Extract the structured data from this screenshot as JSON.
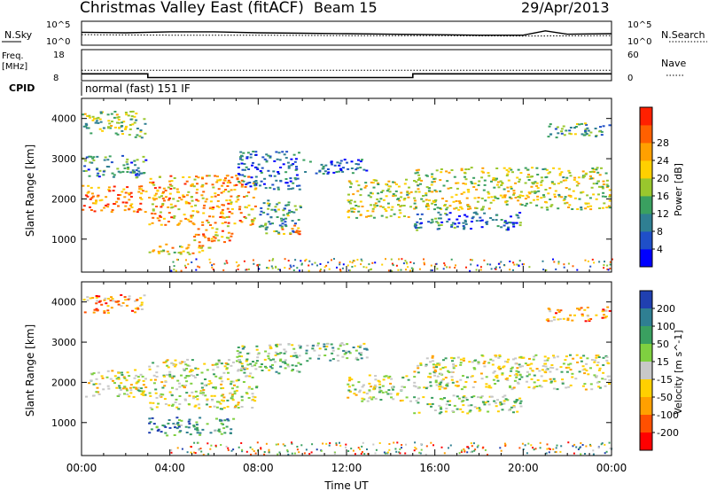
{
  "header": {
    "site": "Christmas Valley East (fitACF)",
    "beam": "Beam 15",
    "date": "29/Apr/2013"
  },
  "summary": {
    "nsky_label": "N.Sky",
    "nsearch_label": "N.Search",
    "nsky_ticks": [
      "10^5",
      "10^0"
    ],
    "nsearch_ticks": [
      "10^5",
      "10^0"
    ],
    "freq_label": "Freq.",
    "freq_unit": "[MHz]",
    "freq_ticks": [
      "18",
      "8"
    ],
    "nave_label": "Nave",
    "nave_ticks": [
      "60",
      "0"
    ],
    "cpid_label": "CPID",
    "cpid_value": "normal (fast) 151 IF"
  },
  "chart_data": [
    {
      "type": "line",
      "name": "noise",
      "series": [
        {
          "name": "N.Sky",
          "x": [
            0,
            2,
            4,
            6,
            8,
            10,
            12,
            14,
            16,
            18,
            20,
            21,
            22,
            24
          ],
          "values": [
            2.7,
            2.6,
            2.8,
            2.8,
            2.6,
            2.5,
            2.4,
            2.3,
            2.2,
            2.1,
            2.1,
            3.0,
            2.3,
            2.4
          ]
        },
        {
          "name": "N.Search",
          "x": [
            0,
            4,
            8,
            12,
            16,
            20,
            24
          ],
          "values": [
            2.2,
            2.1,
            2.1,
            2.0,
            2.0,
            1.9,
            2.0
          ]
        }
      ]
    },
    {
      "type": "line",
      "name": "frequency",
      "series": [
        {
          "name": "Freq.",
          "x": [
            0,
            3,
            3,
            15,
            15,
            24
          ],
          "values": [
            10.2,
            10.2,
            9.0,
            9.0,
            10.2,
            10.2
          ]
        },
        {
          "name": "Nave",
          "x": [
            0,
            24
          ],
          "values": [
            20,
            20
          ]
        }
      ]
    },
    {
      "type": "heatmap",
      "name": "power",
      "xlabel": "",
      "ylabel": "Slant Range [km]",
      "xlim": [
        0,
        24
      ],
      "ylim": [
        180,
        4500
      ],
      "yticks": [
        "1000",
        "2000",
        "3000",
        "4000"
      ],
      "colorbar": {
        "label": "Power [dB]",
        "ticks": [
          "4",
          "8",
          "12",
          "16",
          "20",
          "24",
          "28"
        ],
        "colors": [
          "#0000ff",
          "#1f4fc8",
          "#2f7f92",
          "#3aa060",
          "#99c72d",
          "#ffd000",
          "#ffa000",
          "#ff6000",
          "#ff2000"
        ]
      },
      "bands": [
        {
          "t": [
            0,
            3
          ],
          "r": [
            1650,
            2350
          ],
          "level": 0.8
        },
        {
          "t": [
            0,
            3
          ],
          "r": [
            2500,
            3100
          ],
          "level": 0.3
        },
        {
          "t": [
            0,
            3
          ],
          "r": [
            3500,
            4200
          ],
          "level": 0.45
        },
        {
          "t": [
            3,
            8
          ],
          "r": [
            1300,
            2600
          ],
          "level": 0.7
        },
        {
          "t": [
            3,
            6
          ],
          "r": [
            600,
            900
          ],
          "level": 0.6
        },
        {
          "t": [
            5,
            7
          ],
          "r": [
            900,
            1300
          ],
          "level": 0.7
        },
        {
          "t": [
            7,
            10
          ],
          "r": [
            2200,
            3200
          ],
          "level": 0.2
        },
        {
          "t": [
            8,
            10
          ],
          "r": [
            1100,
            2000
          ],
          "level": 0.35
        },
        {
          "t": [
            9,
            10
          ],
          "r": [
            1100,
            1400
          ],
          "level": 0.75
        },
        {
          "t": [
            10,
            13
          ],
          "r": [
            2600,
            3000
          ],
          "level": 0.2
        },
        {
          "t": [
            12,
            15
          ],
          "r": [
            1500,
            2500
          ],
          "level": 0.55
        },
        {
          "t": [
            15,
            24
          ],
          "r": [
            1700,
            2800
          ],
          "level": 0.55
        },
        {
          "t": [
            15,
            20
          ],
          "r": [
            1200,
            1700
          ],
          "level": 0.25
        },
        {
          "t": [
            21,
            24
          ],
          "r": [
            3500,
            3900
          ],
          "level": 0.35
        }
      ]
    },
    {
      "type": "heatmap",
      "name": "velocity",
      "xlabel": "Time UT",
      "ylabel": "Slant Range [km]",
      "xlim": [
        0,
        24
      ],
      "ylim": [
        180,
        4500
      ],
      "xticks": [
        "00:00",
        "04:00",
        "08:00",
        "12:00",
        "16:00",
        "20:00",
        "00:00"
      ],
      "yticks": [
        "1000",
        "2000",
        "3000",
        "4000"
      ],
      "colorbar": {
        "label": "Velocity [m s^-1]",
        "ticks": [
          "200",
          "100",
          "50",
          "15",
          "-15",
          "-50",
          "-100",
          "-200"
        ],
        "colors": [
          "#2040b0",
          "#2f7f92",
          "#3aa060",
          "#7fd040",
          "#c8c8c8",
          "#ffd000",
          "#ffa000",
          "#ff5000",
          "#ff0000"
        ]
      },
      "bands": [
        {
          "t": [
            0,
            3
          ],
          "r": [
            1600,
            2350
          ],
          "level": 0.5
        },
        {
          "t": [
            3,
            8
          ],
          "r": [
            1300,
            2600
          ],
          "level": 0.5
        },
        {
          "t": [
            3,
            7
          ],
          "r": [
            650,
            1150
          ],
          "level": 0.25
        },
        {
          "t": [
            7,
            10
          ],
          "r": [
            2200,
            3000
          ],
          "level": 0.4
        },
        {
          "t": [
            10,
            13
          ],
          "r": [
            2500,
            3000
          ],
          "level": 0.35
        },
        {
          "t": [
            12,
            15
          ],
          "r": [
            1500,
            2200
          ],
          "level": 0.5
        },
        {
          "t": [
            15,
            24
          ],
          "r": [
            1800,
            2700
          ],
          "level": 0.5
        },
        {
          "t": [
            15,
            20
          ],
          "r": [
            1200,
            1700
          ],
          "level": 0.45
        },
        {
          "t": [
            0,
            3
          ],
          "r": [
            3700,
            4200
          ],
          "level": 0.7
        },
        {
          "t": [
            21,
            24
          ],
          "r": [
            3500,
            3900
          ],
          "level": 0.7
        }
      ]
    }
  ]
}
